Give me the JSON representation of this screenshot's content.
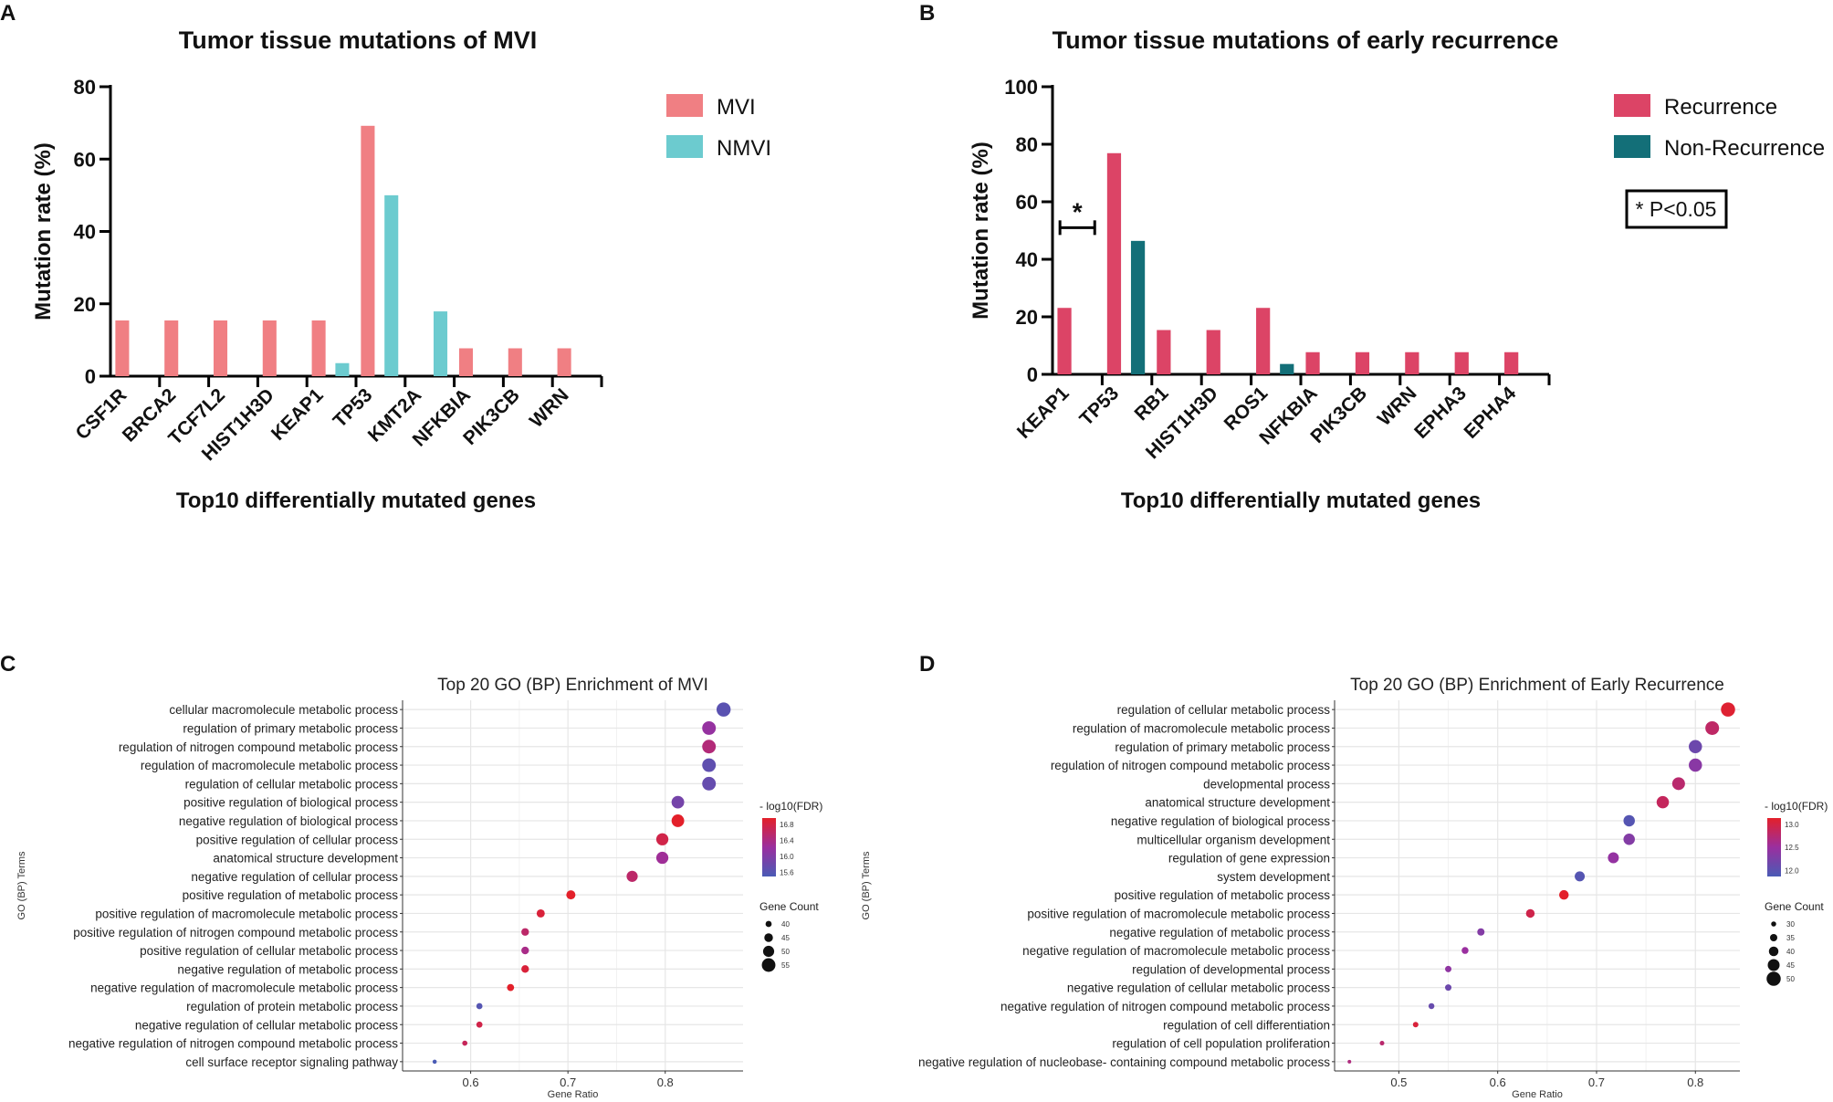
{
  "panel_labels": [
    "A",
    "B",
    "C",
    "D"
  ],
  "chart_data": [
    {
      "type": "bar",
      "panel": "A",
      "title": "Tumor tissue mutations of  MVI",
      "xlabel": "Top10 differentially mutated genes",
      "ylabel": "Mutation rate (%)",
      "ylim": [
        0,
        80
      ],
      "yticks": [
        0,
        20,
        40,
        60,
        80
      ],
      "categories": [
        "CSF1R",
        "BRCA2",
        "TCF7L2",
        "HIST1H3D",
        "KEAP1",
        "TP53",
        "KMT2A",
        "NFKBIA",
        "PIK3CB",
        "WRN"
      ],
      "series": [
        {
          "name": "MVI",
          "color": "#f07f83",
          "values": [
            15.4,
            15.4,
            15.4,
            15.4,
            15.4,
            69.2,
            0,
            7.7,
            7.7,
            7.7
          ]
        },
        {
          "name": "NMVI",
          "color": "#6ccbcf",
          "values": [
            0,
            0,
            0,
            0,
            3.6,
            50.0,
            17.9,
            0,
            0,
            0
          ]
        }
      ],
      "legend_position": "right"
    },
    {
      "type": "bar",
      "panel": "B",
      "title": "Tumor tissue mutations of  early recurrence",
      "xlabel": "Top10 differentially mutated genes",
      "ylabel": "Mutation rate (%)",
      "ylim": [
        0,
        100
      ],
      "yticks": [
        0,
        20,
        40,
        60,
        80,
        100
      ],
      "categories": [
        "KEAP1",
        "TP53",
        "RB1",
        "HIST1H3D",
        "ROS1",
        "NFKBIA",
        "PIK3CB",
        "WRN",
        "EPHA3",
        "EPHA4"
      ],
      "series": [
        {
          "name": "Recurrence",
          "color": "#dc4466",
          "values": [
            23.1,
            76.9,
            15.4,
            15.4,
            23.1,
            7.7,
            7.7,
            7.7,
            7.7,
            7.7
          ]
        },
        {
          "name": "Non-Recurrence",
          "color": "#136f78",
          "values": [
            0,
            46.4,
            0,
            0,
            3.6,
            0,
            0,
            0,
            0,
            0
          ]
        }
      ],
      "annotation": {
        "category": "KEAP1",
        "marker": "*",
        "level": 51
      },
      "pvalue_note": "* P<0.05",
      "legend_position": "right"
    },
    {
      "type": "scatter",
      "panel": "C",
      "title": "Top 20 GO (BP) Enrichment of MVI",
      "xlabel": "Gene Ratio",
      "ylabel": "GO (BP) Terms",
      "xlim": [
        0.53,
        0.88
      ],
      "xticks": [
        0.6,
        0.7,
        0.8
      ],
      "xtick_labels": [
        "0.6",
        "0.7",
        "0.8"
      ],
      "color_legend": {
        "title": "- log10(FDR)",
        "ticks": [
          "16.8",
          "16.4",
          "16.0",
          "15.6"
        ],
        "min": 15.4,
        "max": 16.9
      },
      "size_legend": {
        "title": "Gene Count",
        "values": [
          40,
          45,
          50,
          55
        ],
        "labels": [
          "40",
          "45",
          "50",
          "55"
        ],
        "min": 35,
        "max": 57
      },
      "terms": [
        "cellular macromolecule metabolic process",
        "regulation of primary metabolic process",
        "regulation of nitrogen compound metabolic process",
        "regulation of macromolecule metabolic process",
        "regulation of cellular metabolic process",
        "positive regulation of biological process",
        "negative regulation of biological process",
        "positive regulation of cellular process",
        "anatomical structure development",
        "negative regulation of cellular process",
        "positive regulation of metabolic process",
        "positive regulation of macromolecule metabolic process",
        "positive regulation of nitrogen compound metabolic process",
        "positive regulation of cellular metabolic process",
        "negative regulation of metabolic process",
        "negative regulation of macromolecule metabolic process",
        "regulation of protein metabolic process",
        "negative regulation of cellular metabolic process",
        "negative regulation of nitrogen compound metabolic process",
        "cell surface receptor signaling pathway"
      ],
      "x": [
        0.86,
        0.845,
        0.845,
        0.845,
        0.845,
        0.813,
        0.813,
        0.797,
        0.797,
        0.766,
        0.703,
        0.672,
        0.656,
        0.656,
        0.656,
        0.641,
        0.609,
        0.609,
        0.594,
        0.563
      ],
      "fdr": [
        15.55,
        16.1,
        16.4,
        15.6,
        15.65,
        15.8,
        16.9,
        16.7,
        16.2,
        16.5,
        16.9,
        16.8,
        16.5,
        16.3,
        16.8,
        16.9,
        15.5,
        16.7,
        16.6,
        15.4
      ],
      "count": [
        56,
        55,
        55,
        55,
        55,
        53,
        53,
        52,
        52,
        50,
        46,
        44,
        43,
        43,
        43,
        42,
        40,
        40,
        38,
        36
      ]
    },
    {
      "type": "scatter",
      "panel": "D",
      "title": "Top 20 GO (BP) Enrichment of Early Recurrence",
      "xlabel": "Gene Ratio",
      "ylabel": "GO (BP) Terms",
      "xlim": [
        0.435,
        0.845
      ],
      "xticks": [
        0.5,
        0.6,
        0.7,
        0.8
      ],
      "xtick_labels": [
        "0.5",
        "0.6",
        "0.7",
        "0.8"
      ],
      "color_legend": {
        "title": "- log10(FDR)",
        "ticks": [
          "13.0",
          "12.5",
          "12.0"
        ],
        "min": 11.9,
        "max": 13.3
      },
      "size_legend": {
        "title": "Gene Count",
        "values": [
          30,
          35,
          40,
          45,
          50
        ],
        "labels": [
          "30",
          "35",
          "40",
          "45",
          "50"
        ],
        "min": 27,
        "max": 51
      },
      "terms": [
        "regulation of cellular metabolic process",
        "regulation of macromolecule metabolic process",
        "regulation of primary metabolic process",
        "regulation of nitrogen compound metabolic process",
        "developmental process",
        "anatomical structure development",
        "negative regulation of biological process",
        "multicellular organism development",
        "regulation of gene expression",
        "system development",
        "positive regulation of metabolic process",
        "positive regulation of macromolecule metabolic process",
        "negative regulation of metabolic process",
        "negative regulation of macromolecule metabolic process",
        "regulation of developmental process",
        "negative regulation of cellular metabolic process",
        "negative regulation of nitrogen compound metabolic process",
        "regulation of cell differentiation",
        "regulation of cell population proliferation",
        "negative regulation of nucleobase- containing compound metabolic process"
      ],
      "x": [
        0.833,
        0.817,
        0.8,
        0.8,
        0.783,
        0.767,
        0.733,
        0.733,
        0.717,
        0.683,
        0.667,
        0.633,
        0.583,
        0.567,
        0.55,
        0.55,
        0.533,
        0.517,
        0.483,
        0.45
      ],
      "fdr": [
        13.25,
        12.95,
        12.2,
        12.45,
        12.9,
        13.0,
        12.0,
        12.4,
        12.55,
        12.0,
        13.3,
        13.1,
        12.4,
        12.6,
        12.5,
        12.2,
        12.15,
        13.2,
        12.9,
        12.8
      ],
      "count": [
        50,
        49,
        48,
        48,
        47,
        46,
        44,
        44,
        43,
        41,
        40,
        38,
        35,
        34,
        33,
        33,
        32,
        31,
        29,
        27
      ]
    }
  ]
}
